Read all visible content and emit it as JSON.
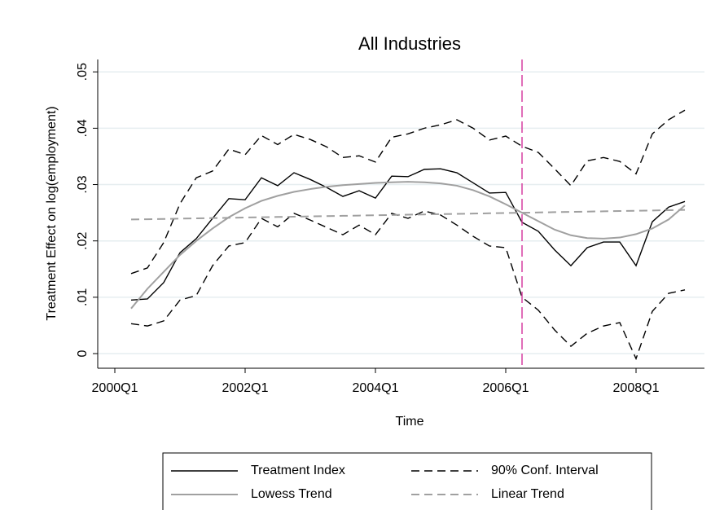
{
  "chart_data": {
    "type": "line",
    "title": "All Industries",
    "x_label": "Time",
    "y_label": "Treatment Effect on log(employment)",
    "x": [
      161,
      162,
      163,
      164,
      165,
      166,
      167,
      168,
      169,
      170,
      171,
      172,
      173,
      174,
      175,
      176,
      177,
      178,
      179,
      180,
      181,
      182,
      183,
      184,
      185,
      186,
      187,
      188,
      189,
      190,
      191,
      192,
      193,
      194,
      195
    ],
    "series": [
      {
        "name": "Treatment Index",
        "color": "#000000",
        "dash": "solid",
        "values": [
          0.0095,
          0.0097,
          0.0126,
          0.0179,
          0.0204,
          0.024,
          0.0275,
          0.0273,
          0.0312,
          0.0298,
          0.0321,
          0.0309,
          0.0295,
          0.0279,
          0.0289,
          0.0276,
          0.0315,
          0.0314,
          0.0327,
          0.0328,
          0.0321,
          0.0303,
          0.0285,
          0.0286,
          0.0233,
          0.0217,
          0.0184,
          0.0156,
          0.0188,
          0.0198,
          0.0198,
          0.0156,
          0.0234,
          0.026,
          0.027
        ]
      },
      {
        "name": "90% Conf. Interval",
        "color": "#000000",
        "dash": "dashed",
        "values": [
          0.0142,
          0.0152,
          0.0197,
          0.0266,
          0.0312,
          0.0324,
          0.0363,
          0.0353,
          0.0387,
          0.0371,
          0.0389,
          0.038,
          0.0367,
          0.0348,
          0.0351,
          0.034,
          0.0384,
          0.039,
          0.04,
          0.0406,
          0.0415,
          0.04,
          0.0379,
          0.0386,
          0.0368,
          0.0357,
          0.0328,
          0.0298,
          0.0342,
          0.0348,
          0.0341,
          0.0319,
          0.039,
          0.0415,
          0.0432
        ]
      },
      {
        "name": null,
        "color": "#000000",
        "dash": "dashed",
        "values": [
          0.0053,
          0.0049,
          0.0058,
          0.0095,
          0.0103,
          0.0156,
          0.0191,
          0.0197,
          0.024,
          0.0225,
          0.0249,
          0.0237,
          0.0224,
          0.0211,
          0.0228,
          0.0211,
          0.0249,
          0.024,
          0.0253,
          0.0246,
          0.0228,
          0.0208,
          0.0191,
          0.0188,
          0.01,
          0.0077,
          0.0042,
          0.0013,
          0.0036,
          0.0049,
          0.0055,
          -0.0009,
          0.0075,
          0.0107,
          0.0113
        ]
      },
      {
        "name": "Lowess Trend",
        "color": "#a0a0a0",
        "dash": "solid",
        "values": [
          0.008,
          0.0115,
          0.0145,
          0.0175,
          0.02,
          0.0222,
          0.0242,
          0.0258,
          0.0271,
          0.028,
          0.0287,
          0.0292,
          0.0296,
          0.0299,
          0.0301,
          0.0303,
          0.0304,
          0.0305,
          0.0304,
          0.0302,
          0.0298,
          0.029,
          0.0279,
          0.0265,
          0.025,
          0.0235,
          0.022,
          0.021,
          0.0205,
          0.0204,
          0.0206,
          0.0212,
          0.0222,
          0.0238,
          0.0263
        ]
      },
      {
        "name": "Linear Trend",
        "color": "#a0a0a0",
        "dash": "dashed",
        "values": [
          0.0238,
          0.02385,
          0.0239,
          0.02395,
          0.024,
          0.02405,
          0.0241,
          0.02415,
          0.0242,
          0.02425,
          0.0243,
          0.02435,
          0.0244,
          0.02445,
          0.0245,
          0.02455,
          0.0246,
          0.02465,
          0.0247,
          0.02475,
          0.0248,
          0.02485,
          0.0249,
          0.02495,
          0.025,
          0.02505,
          0.0251,
          0.02515,
          0.0252,
          0.02525,
          0.0253,
          0.02535,
          0.0254,
          0.02545,
          0.0255
        ]
      }
    ],
    "xline": 185,
    "xline_color": "#d63fa0",
    "xlim": [
      158.95,
      196.2
    ],
    "ylim": [
      -0.0026,
      0.0522
    ],
    "xticks": [
      {
        "value": 160,
        "label": "2000Q1"
      },
      {
        "value": 168,
        "label": "2002Q1"
      },
      {
        "value": 176,
        "label": "2004Q1"
      },
      {
        "value": 184,
        "label": "2006Q1"
      },
      {
        "value": 192,
        "label": "2008Q1"
      }
    ],
    "yticks": [
      0,
      {
        "value": 0.01,
        "label": ".01"
      },
      {
        "value": 0.02,
        "label": ".02"
      },
      {
        "value": 0.03,
        "label": ".03"
      },
      {
        "value": 0.04,
        "label": ".04"
      },
      {
        "value": 0.05,
        "label": ".05"
      }
    ],
    "grid": true
  }
}
